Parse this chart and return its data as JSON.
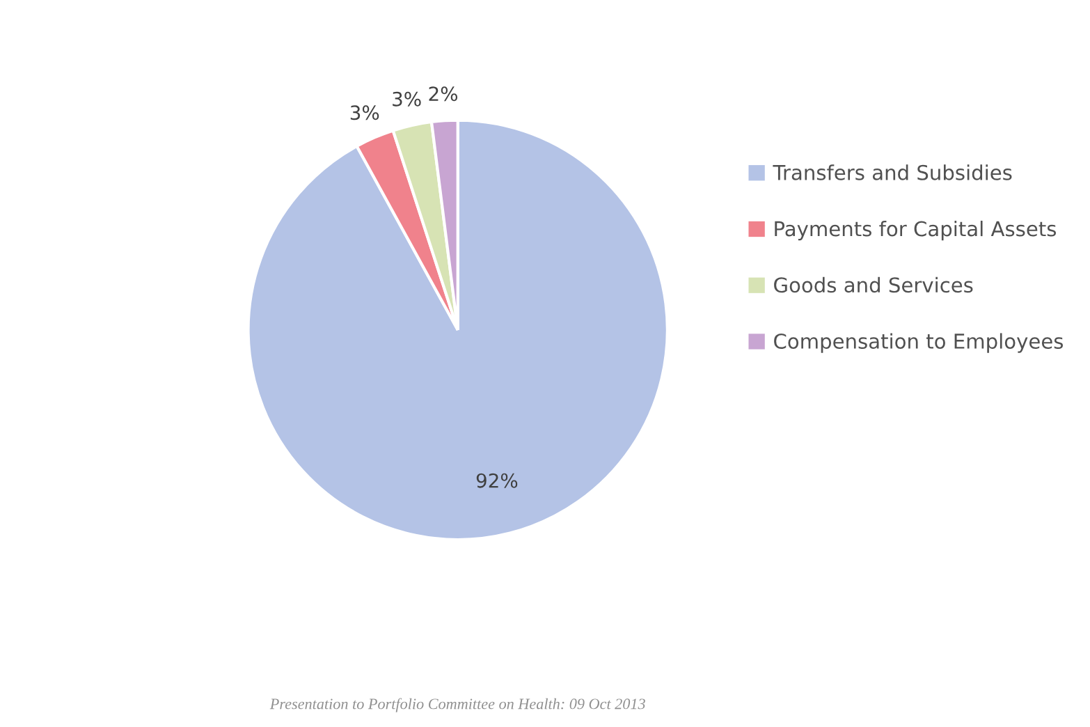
{
  "chart_data": {
    "type": "pie",
    "categories": [
      "Transfers and Subsidies",
      "Payments for Capital Assets",
      "Goods and Services",
      "Compensation to Employees"
    ],
    "values": [
      92,
      3,
      3,
      2
    ],
    "value_labels": [
      "92%",
      "3%",
      "3%",
      "2%"
    ],
    "colors": [
      "#b4c3e6",
      "#f0828c",
      "#d7e3b4",
      "#c8a5d2"
    ],
    "legend": "right",
    "annotations": [
      "Presentation to Portfolio Committee on Health: 09 Oct 2013"
    ]
  }
}
